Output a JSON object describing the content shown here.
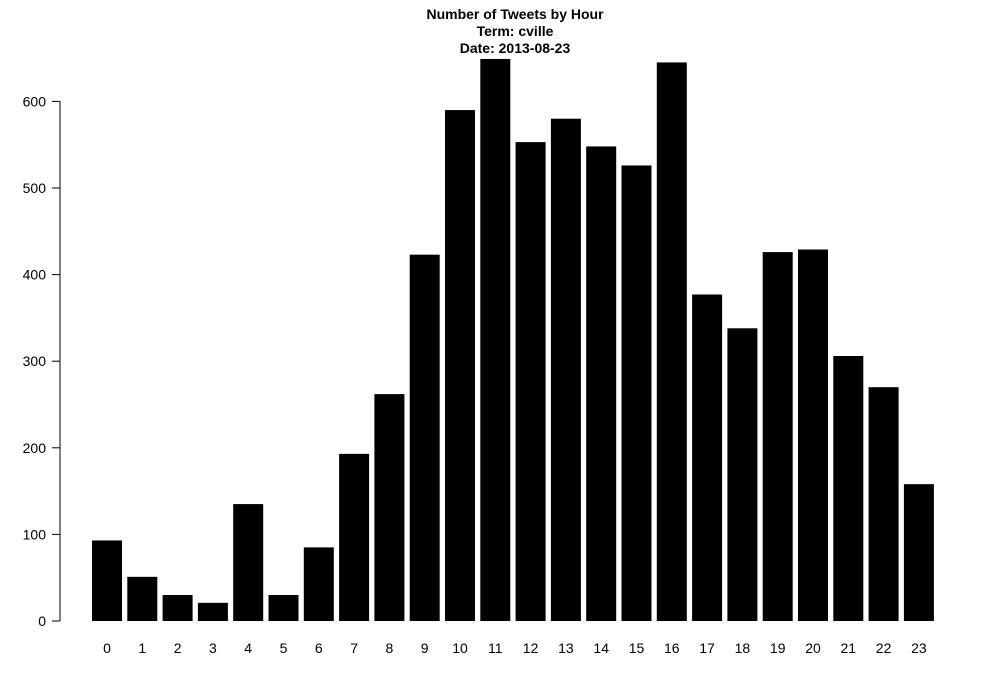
{
  "chart_data": {
    "type": "bar",
    "title_lines": [
      "Number of Tweets by Hour",
      "Term: cville",
      "Date: 2013-08-23"
    ],
    "xlabel": "",
    "ylabel": "",
    "categories": [
      "0",
      "1",
      "2",
      "3",
      "4",
      "5",
      "6",
      "7",
      "8",
      "9",
      "10",
      "11",
      "12",
      "13",
      "14",
      "15",
      "16",
      "17",
      "18",
      "19",
      "20",
      "21",
      "22",
      "23"
    ],
    "values": [
      93,
      51,
      30,
      21,
      135,
      30,
      85,
      193,
      262,
      423,
      590,
      649,
      553,
      580,
      548,
      526,
      645,
      377,
      338,
      426,
      429,
      306,
      270,
      158
    ],
    "yticks": [
      0,
      100,
      200,
      300,
      400,
      500,
      600
    ],
    "ylim": [
      0,
      650
    ],
    "grid": false,
    "bar_color": "#000000"
  }
}
